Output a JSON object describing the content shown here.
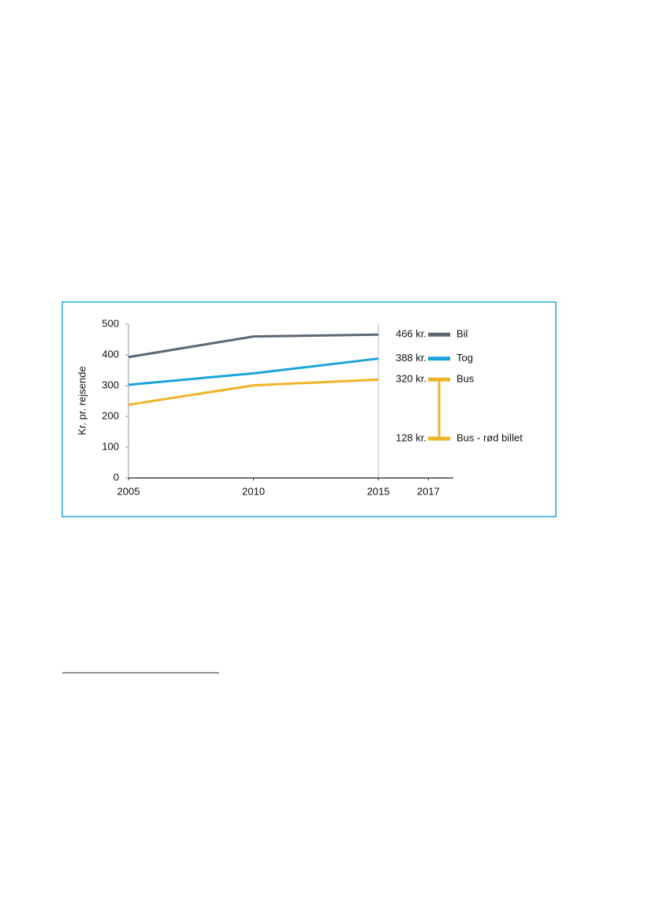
{
  "chart_data": {
    "type": "line",
    "ylabel": "Kr. pr. rejsende",
    "xlim": [
      2005,
      2018
    ],
    "xticks": [
      2005,
      2010,
      2015,
      2017
    ],
    "ylim": [
      0,
      500
    ],
    "yticks": [
      0,
      100,
      200,
      300,
      400,
      500
    ],
    "series": [
      {
        "name": "Bil",
        "color": "#5b6774",
        "x": [
          2005,
          2010,
          2015
        ],
        "values": [
          393,
          460,
          466
        ],
        "value_labels": [
          null,
          null,
          "466 kr."
        ]
      },
      {
        "name": "Tog",
        "color": "#1ba4da",
        "x": [
          2005,
          2010,
          2015
        ],
        "values": [
          303,
          340,
          388
        ],
        "value_labels": [
          null,
          null,
          "388 kr."
        ]
      },
      {
        "name": "Bus",
        "color": "#f0b42a",
        "x": [
          2005,
          2010,
          2015
        ],
        "values": [
          238,
          301,
          320
        ],
        "value_labels": [
          null,
          null,
          "320 kr."
        ]
      },
      {
        "name": "Bus - rød billet",
        "color": "#f0b42a",
        "x": [
          2017
        ],
        "values": [
          128
        ],
        "value_labels": [
          "128 kr."
        ]
      }
    ]
  }
}
